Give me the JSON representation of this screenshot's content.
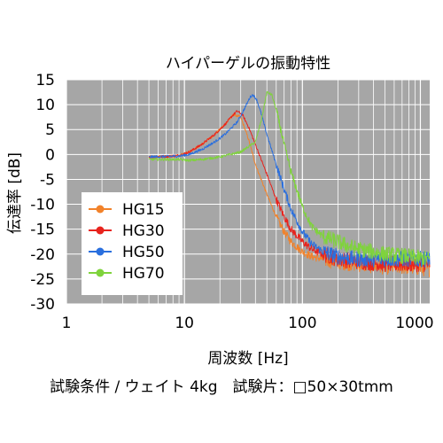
{
  "chart_data": {
    "type": "line",
    "title": "ハイパーゲルの振動特性",
    "xlabel": "周波数 [Hz]",
    "ylabel": "伝達率 [dB]",
    "x_scale": "log",
    "xlim": [
      1,
      1200
    ],
    "ylim": [
      -30,
      15
    ],
    "x_ticks": [
      {
        "value": 1,
        "label": "1"
      },
      {
        "value": 10,
        "label": "10"
      },
      {
        "value": 100,
        "label": "100"
      },
      {
        "value": 1000,
        "label": "1000"
      }
    ],
    "y_ticks": [
      {
        "value": 15,
        "label": "15"
      },
      {
        "value": 10,
        "label": "10"
      },
      {
        "value": 5,
        "label": "5"
      },
      {
        "value": 0,
        "label": "0"
      },
      {
        "value": -5,
        "label": "-5"
      },
      {
        "value": -10,
        "label": "-10"
      },
      {
        "value": -15,
        "label": "-15"
      },
      {
        "value": -20,
        "label": "-20"
      },
      {
        "value": -25,
        "label": "-25"
      },
      {
        "value": -30,
        "label": "-30"
      }
    ],
    "grid": true,
    "legend_position": "lower-left",
    "background": "#a6a6a6",
    "series": [
      {
        "name": "HG15",
        "color": "#f2822a",
        "x": [
          5,
          7,
          9,
          11,
          14,
          18,
          22,
          26,
          30,
          35,
          40,
          50,
          60,
          70,
          80,
          100,
          120,
          150,
          200,
          300,
          500,
          800,
          1200
        ],
        "y": [
          -0.5,
          -0.4,
          -0.2,
          0.5,
          2.0,
          4.0,
          6.0,
          8.0,
          7.5,
          3.0,
          -2.0,
          -8.0,
          -12.5,
          -15.5,
          -17.5,
          -19.5,
          -20.5,
          -21.0,
          -21.5,
          -22.0,
          -22.5,
          -22.5,
          -23.0
        ]
      },
      {
        "name": "HG30",
        "color": "#e8231d",
        "x": [
          5,
          7,
          9,
          11,
          14,
          18,
          22,
          26,
          28,
          31,
          35,
          40,
          50,
          60,
          70,
          80,
          100,
          120,
          150,
          200,
          300,
          500,
          800,
          1200
        ],
        "y": [
          -0.5,
          -0.4,
          -0.2,
          0.5,
          2.0,
          4.0,
          6.0,
          8.0,
          8.7,
          8.0,
          5.5,
          2.0,
          -4.0,
          -9.0,
          -12.5,
          -15.0,
          -17.5,
          -19.0,
          -20.0,
          -21.0,
          -21.5,
          -22.0,
          -22.0,
          -22.0
        ]
      },
      {
        "name": "HG50",
        "color": "#2a6fde",
        "x": [
          5,
          7,
          9,
          11,
          14,
          18,
          22,
          28,
          32,
          36,
          38,
          41,
          45,
          50,
          60,
          70,
          80,
          100,
          120,
          150,
          200,
          300,
          500,
          800,
          1200
        ],
        "y": [
          -0.5,
          -0.4,
          -0.3,
          0.0,
          1.0,
          2.5,
          4.0,
          6.5,
          9.0,
          11.5,
          12.0,
          11.0,
          8.0,
          4.0,
          -2.0,
          -7.0,
          -11.0,
          -15.5,
          -18.0,
          -19.5,
          -20.5,
          -21.0,
          -21.0,
          -21.0,
          -21.0
        ]
      },
      {
        "name": "HG70",
        "color": "#7fd33c",
        "x": [
          5,
          7,
          9,
          11,
          14,
          20,
          30,
          40,
          45,
          50,
          55,
          60,
          70,
          80,
          100,
          120,
          150,
          200,
          250,
          300,
          500,
          800,
          1200
        ],
        "y": [
          -1.0,
          -1.0,
          -1.0,
          -1.2,
          -1.0,
          -0.5,
          0.5,
          2.5,
          7.0,
          12.5,
          12.0,
          9.0,
          2.0,
          -3.5,
          -10.5,
          -14.5,
          -16.5,
          -17.5,
          -18.5,
          -19.0,
          -20.0,
          -20.5,
          -21.0
        ]
      }
    ]
  },
  "footnote": "試験条件 / ウェイト 4kg　試験片：□50×30tmm"
}
